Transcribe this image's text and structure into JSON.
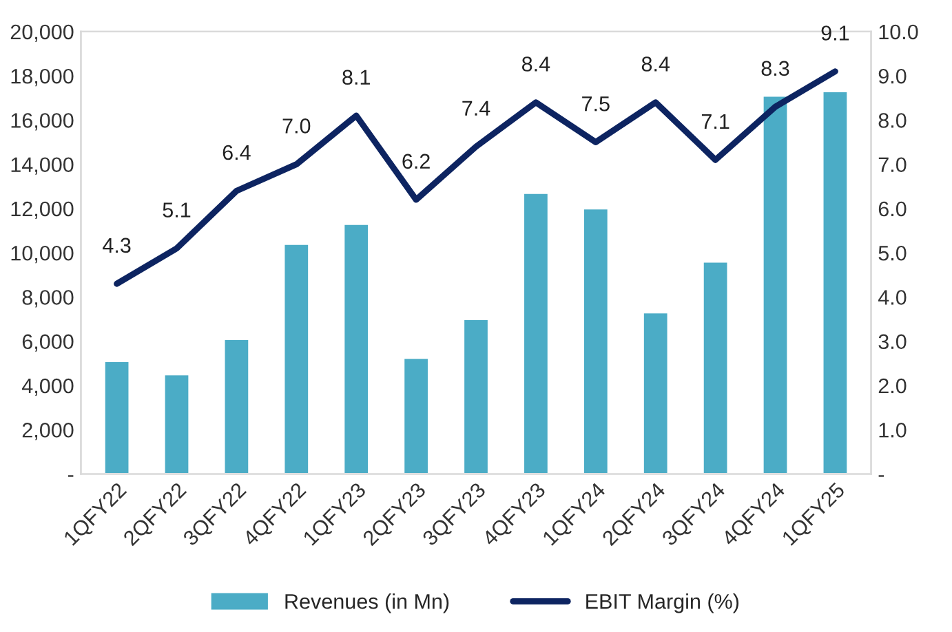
{
  "chart_data": {
    "type": "bar",
    "categories": [
      "1QFY22",
      "2QFY22",
      "3QFY22",
      "4QFY22",
      "1QFY23",
      "2QFY23",
      "3QFY23",
      "4QFY23",
      "1QFY24",
      "2QFY24",
      "3QFY24",
      "4QFY24",
      "1QFY25"
    ],
    "series": [
      {
        "name": "Revenues (in Mn)",
        "color": "#4bacc6",
        "values": [
          5100,
          4500,
          6100,
          10400,
          11300,
          5250,
          7000,
          12700,
          12000,
          7300,
          9600,
          17100,
          17300
        ]
      },
      {
        "name": "EBIT Margin (%)",
        "type": "line",
        "axis": "y2",
        "color": "#0d2461",
        "values": [
          4.3,
          5.1,
          6.4,
          7.0,
          8.1,
          6.2,
          7.4,
          8.4,
          7.5,
          8.4,
          7.1,
          8.3,
          9.1
        ],
        "value_labels": [
          "4.3",
          "5.1",
          "6.4",
          "7.0",
          "8.1",
          "6.2",
          "7.4",
          "8.4",
          "7.5",
          "8.4",
          "7.1",
          "8.3",
          "9.1"
        ]
      }
    ],
    "ylim": [
      0,
      20000
    ],
    "yticks": [
      {
        "value": 0,
        "label": "-"
      },
      {
        "value": 2000,
        "label": "2,000"
      },
      {
        "value": 4000,
        "label": "4,000"
      },
      {
        "value": 6000,
        "label": "6,000"
      },
      {
        "value": 8000,
        "label": "8,000"
      },
      {
        "value": 10000,
        "label": "10,000"
      },
      {
        "value": 12000,
        "label": "12,000"
      },
      {
        "value": 14000,
        "label": "14,000"
      },
      {
        "value": 16000,
        "label": "16,000"
      },
      {
        "value": 18000,
        "label": "18,000"
      },
      {
        "value": 20000,
        "label": "20,000"
      }
    ],
    "y2lim": [
      0,
      10
    ],
    "y2ticks": [
      {
        "value": 0,
        "label": "-"
      },
      {
        "value": 1,
        "label": "1.0"
      },
      {
        "value": 2,
        "label": "2.0"
      },
      {
        "value": 3,
        "label": "3.0"
      },
      {
        "value": 4,
        "label": "4.0"
      },
      {
        "value": 5,
        "label": "5.0"
      },
      {
        "value": 6,
        "label": "6.0"
      },
      {
        "value": 7,
        "label": "7.0"
      },
      {
        "value": 8,
        "label": "8.0"
      },
      {
        "value": 9,
        "label": "9.0"
      },
      {
        "value": 10,
        "label": "10.0"
      }
    ],
    "legend": "bottom",
    "grid": false
  }
}
